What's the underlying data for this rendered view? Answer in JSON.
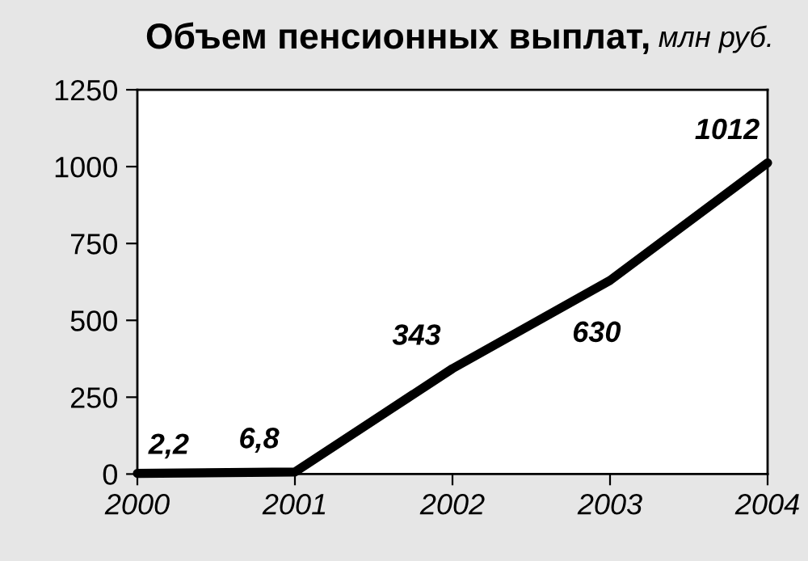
{
  "chart_data": {
    "type": "line",
    "title": "Объем пенсионных выплат,",
    "subtitle": "млн руб.",
    "x": [
      2000,
      2001,
      2002,
      2003,
      2004
    ],
    "values": [
      2.2,
      6.8,
      343,
      630,
      1012
    ],
    "value_labels": [
      "2,2",
      "6,8",
      "343",
      "630",
      "1012"
    ],
    "color": "#000000",
    "xlim": [
      2000,
      2004
    ],
    "xticks": [
      2000,
      2001,
      2002,
      2003,
      2004
    ],
    "ylim": [
      0,
      1250
    ],
    "yticks": [
      0,
      250,
      500,
      750,
      1000,
      1250
    ],
    "grid": false,
    "marker": "none",
    "line_style": "solid"
  }
}
